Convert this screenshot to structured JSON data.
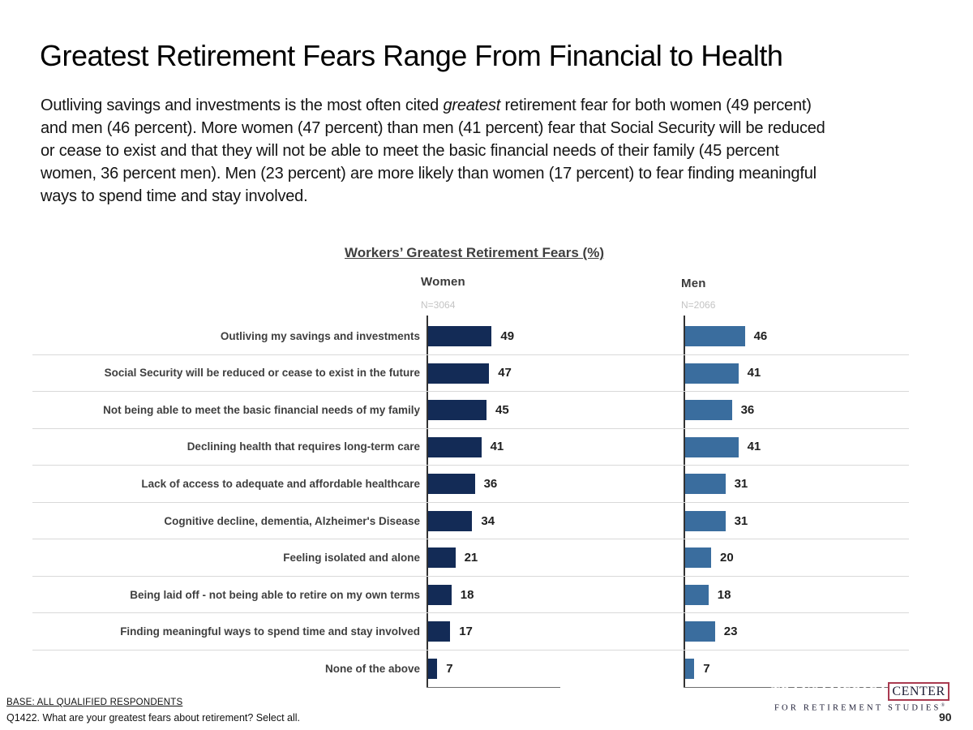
{
  "slide": {
    "title": "Greatest Retirement Fears Range From Financial to Health",
    "page_number": "90"
  },
  "body": {
    "line1_pre": "Outliving savings and investments is the most often cited ",
    "line1_italic": "greatest",
    "line1_post": " retirement fear for both women (49 percent)",
    "line2": "and men (46 percent). More women (47 percent) than men (41 percent) fear that Social Security will be reduced",
    "line3": "or cease to exist and that they will not be able to meet the basic financial needs of their family (45 percent",
    "line4": "women, 36 percent men). Men (23 percent) are more likely than women (17 percent) to fear finding meaningful",
    "line5": "ways to spend time and stay involved."
  },
  "chart_data": {
    "type": "bar",
    "orientation": "horizontal",
    "title": "Workers’ Greatest Retirement Fears (%)",
    "value_unit": "percent",
    "xlim": [
      0,
      100
    ],
    "grid": "row-separators",
    "legend_position": "column-headers",
    "categories": [
      "Outliving my savings and investments",
      "Social Security will be reduced or cease to exist in the future",
      "Not being able to meet the basic financial needs of my family",
      "Declining health that requires long-term care",
      "Lack of access to adequate and affordable healthcare",
      "Cognitive decline, dementia, Alzheimer's Disease",
      "Feeling isolated and alone",
      "Being laid off - not being able to retire on my own terms",
      "Finding meaningful ways to spend time and stay involved",
      "None of the above"
    ],
    "series": [
      {
        "name": "Women",
        "n_label": "N=3064",
        "color": "#132b56",
        "values": [
          49,
          47,
          45,
          41,
          36,
          34,
          21,
          18,
          17,
          7
        ]
      },
      {
        "name": "Men",
        "n_label": "N=2066",
        "color": "#3a6d9e",
        "values": [
          46,
          41,
          36,
          41,
          31,
          31,
          20,
          18,
          23,
          7
        ]
      }
    ]
  },
  "footer": {
    "base": "BASE: ALL QUALIFIED RESPONDENTS",
    "question": "Q1422. What are your greatest fears about retirement? Select all."
  },
  "logo": {
    "name1": "TRANSAMERICA",
    "name2": "CENTER",
    "tagline": "FOR RETIREMENT STUDIES",
    "reg": "®",
    "brand_color": "#a32035"
  }
}
